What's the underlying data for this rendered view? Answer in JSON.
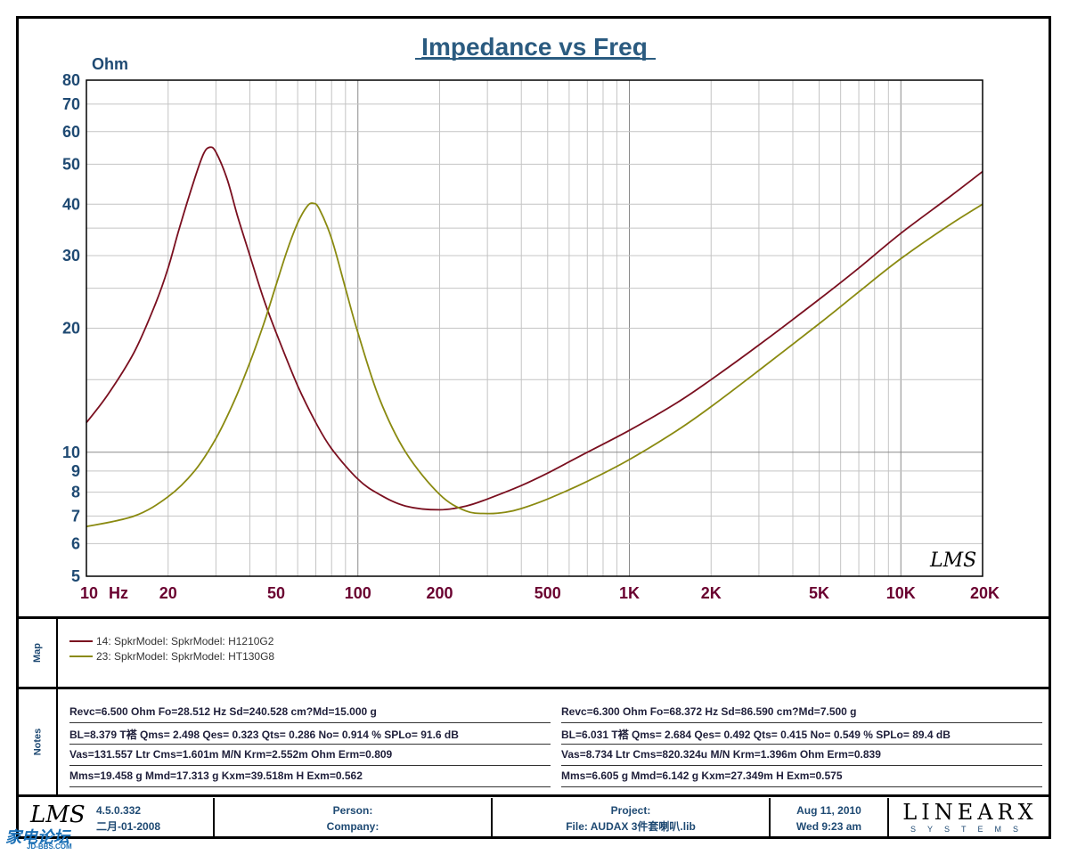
{
  "chart_data": {
    "type": "line",
    "title": "Impedance vs Freq",
    "ylabel": "Ohm",
    "xlabel": "Hz",
    "xscale": "log",
    "yscale": "log",
    "xlim": [
      10,
      20000
    ],
    "ylim": [
      5,
      80
    ],
    "x_ticks": [
      {
        "value": 10,
        "label": "10"
      },
      {
        "value": 20,
        "label": "20"
      },
      {
        "value": 50,
        "label": "50"
      },
      {
        "value": 100,
        "label": "100"
      },
      {
        "value": 200,
        "label": "200"
      },
      {
        "value": 500,
        "label": "500"
      },
      {
        "value": 1000,
        "label": "1K"
      },
      {
        "value": 2000,
        "label": "2K"
      },
      {
        "value": 5000,
        "label": "5K"
      },
      {
        "value": 10000,
        "label": "10K"
      },
      {
        "value": 20000,
        "label": "20K"
      }
    ],
    "y_ticks": [
      5,
      6,
      7,
      8,
      9,
      10,
      20,
      30,
      40,
      50,
      60,
      70,
      80
    ],
    "grid": true,
    "series": [
      {
        "name": "14: SpkrModel: SpkrModel: H1210G2",
        "color": "#7a0f1f",
        "x": [
          10,
          12,
          15,
          18,
          20,
          22,
          25,
          27,
          28.5,
          30,
          33,
          36,
          40,
          45,
          50,
          60,
          70,
          80,
          100,
          120,
          150,
          200,
          250,
          300,
          400,
          500,
          700,
          1000,
          1500,
          2000,
          3000,
          5000,
          7000,
          10000,
          15000,
          20000
        ],
        "y": [
          11.8,
          13.8,
          17.5,
          23,
          28,
          35,
          46,
          53,
          55,
          53.5,
          46,
          37.5,
          30,
          23.5,
          19.5,
          14.5,
          11.8,
          10.2,
          8.6,
          7.9,
          7.4,
          7.25,
          7.4,
          7.7,
          8.3,
          8.9,
          10.0,
          11.3,
          13.2,
          15.0,
          18.2,
          23.5,
          28.0,
          34.0,
          41.5,
          48.0
        ]
      },
      {
        "name": "23: SpkrModel: SpkrModel: HT130G8",
        "color": "#8a8a10",
        "x": [
          10,
          15,
          20,
          25,
          30,
          35,
          40,
          45,
          50,
          55,
          60,
          65,
          68.4,
          72,
          80,
          90,
          100,
          120,
          150,
          200,
          250,
          300,
          350,
          400,
          500,
          700,
          1000,
          1500,
          2000,
          3000,
          5000,
          7000,
          10000,
          15000,
          20000
        ],
        "y": [
          6.6,
          7.0,
          7.8,
          9.0,
          10.8,
          13.3,
          16.5,
          20.5,
          25.5,
          31,
          36,
          39.5,
          40.2,
          39,
          33,
          25,
          19.5,
          13.5,
          10.0,
          7.9,
          7.2,
          7.1,
          7.15,
          7.3,
          7.7,
          8.5,
          9.6,
          11.3,
          12.9,
          15.8,
          20.5,
          24.5,
          29.5,
          35.5,
          40.0
        ]
      }
    ]
  },
  "legend_box_label": "Map",
  "notes_box_label": "Notes",
  "notes_left": [
    "Revc=6.500 Ohm  Fo=28.512 Hz  Sd=240.528 cm?Md=15.000 g",
    "BL=8.379 T褡  Qms= 2.498  Qes= 0.323  Qts= 0.286  No= 0.914 %  SPLo= 91.6 dB",
    "Vas=131.557 Ltr  Cms=1.601m M/N  Krm=2.552m Ohm  Erm=0.809",
    "Mms=19.458 g  Mmd=17.313 g  Kxm=39.518m H  Exm=0.562"
  ],
  "notes_right": [
    "Revc=6.300 Ohm  Fo=68.372 Hz  Sd=86.590 cm?Md=7.500 g",
    "BL=6.031 T褡  Qms= 2.684  Qes= 0.492  Qts= 0.415  No= 0.549 %  SPLo= 89.4 dB",
    "Vas=8.734 Ltr  Cms=820.324u M/N  Krm=1.396m Ohm  Erm=0.839",
    "Mms=6.605 g  Mmd=6.142 g  Kxm=27.349m H  Exm=0.575"
  ],
  "footer": {
    "logo": "LMS",
    "version": "4.5.0.332",
    "build_date": "二月-01-2008",
    "person_label": "Person:",
    "company_label": "Company:",
    "project_label": "Project:",
    "file_label": "File: AUDAX 3件套喇叭.lib",
    "date": "Aug 11, 2010",
    "time": "Wed  9:23 am",
    "brand": "LINEARX",
    "brand_sub": "SYSTEMS"
  },
  "plot_logo": "LMS",
  "watermark": "家电论坛",
  "watermark_sub": "JD-BBS.COM"
}
